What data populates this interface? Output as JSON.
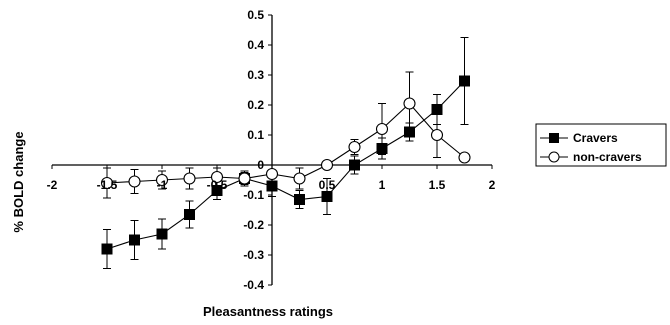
{
  "chart_data": {
    "type": "line",
    "xlabel": "Pleasantness ratings",
    "ylabel": "% BOLD change",
    "xlim": [
      -2,
      2
    ],
    "ylim": [
      -0.4,
      0.5
    ],
    "x_ticks": [
      "-2",
      "-1.5",
      "-1",
      "-0.5",
      "0",
      "0.5",
      "1",
      "1.5",
      "2"
    ],
    "y_ticks": [
      "-0.4",
      "-0.3",
      "-0.2",
      "-0.1",
      "0",
      "0.1",
      "0.2",
      "0.3",
      "0.4",
      "0.5"
    ],
    "legend_position": "right",
    "grid": false,
    "series": [
      {
        "name": "Cravers",
        "marker": "filled-square",
        "color": "#000000",
        "x": [
          -1.5,
          -1.25,
          -1.0,
          -0.75,
          -0.5,
          -0.25,
          0.0,
          0.25,
          0.5,
          0.75,
          1.0,
          1.25,
          1.5,
          1.75
        ],
        "values": [
          -0.28,
          -0.25,
          -0.23,
          -0.165,
          -0.085,
          -0.045,
          -0.07,
          -0.115,
          -0.105,
          0.0,
          0.055,
          0.11,
          0.185,
          0.28
        ],
        "error": [
          0.065,
          0.065,
          0.05,
          0.045,
          0.03,
          0.02,
          0.035,
          0.03,
          0.06,
          0.03,
          0.035,
          0.03,
          0.05,
          0.145
        ]
      },
      {
        "name": "non-cravers",
        "marker": "open-circle",
        "color": "#000000",
        "x": [
          -1.5,
          -1.25,
          -1.0,
          -0.75,
          -0.5,
          -0.25,
          0.0,
          0.25,
          0.5,
          0.75,
          1.0,
          1.25,
          1.5,
          1.75
        ],
        "values": [
          -0.06,
          -0.055,
          -0.05,
          -0.045,
          -0.04,
          -0.045,
          -0.03,
          -0.045,
          0.0,
          0.06,
          0.12,
          0.205,
          0.1,
          0.025
        ],
        "error": [
          0.05,
          0.04,
          0.03,
          0.035,
          0.03,
          0.025,
          0.03,
          0.035,
          0.0,
          0.025,
          0.085,
          0.105,
          0.075,
          0.0
        ]
      }
    ]
  },
  "colors": {
    "background": "#ffffff",
    "ink": "#000000"
  }
}
